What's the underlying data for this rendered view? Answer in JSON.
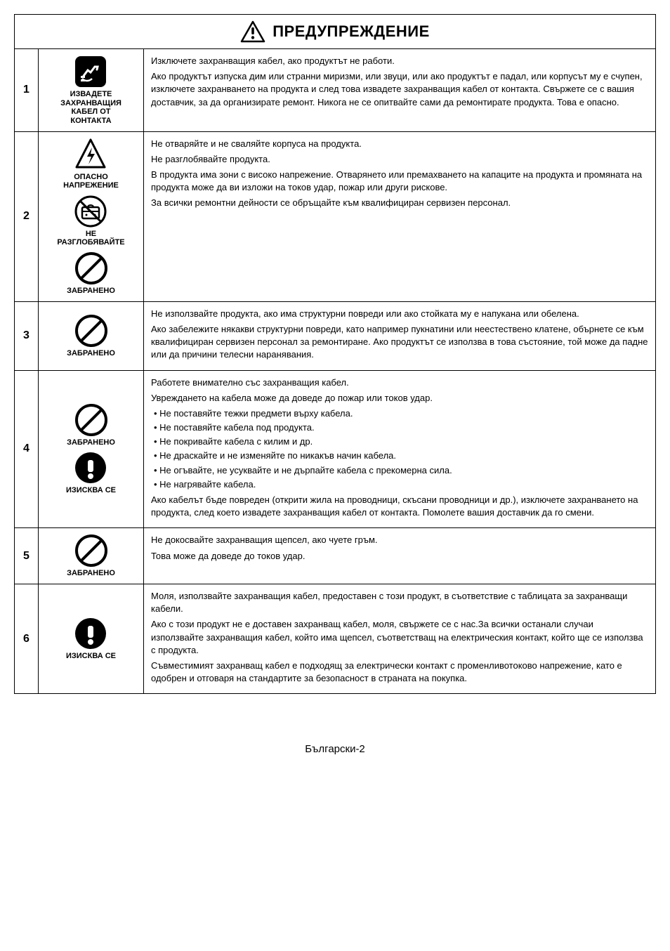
{
  "header": {
    "title": "ПРЕДУПРЕЖДЕНИЕ"
  },
  "rows": [
    {
      "num": "1",
      "icons": [
        {
          "type": "plug",
          "label": "ИЗВАДЕТЕ\nЗАХРАНВАЩИЯ\nКАБЕЛ ОТ\nКОНТАКТА"
        }
      ],
      "paras": [
        "Изключете захранващия кабел, ако продуктът не работи.",
        "Ако продуктът изпуска дим или странни миризми, или звуци, или ако продуктът е падал, или корпусът му е счупен, изключете захранването на продукта и след това извадете захранващия кабел от контакта. Свържете се с вашия доставчик, за да организирате ремонт. Никога не се опитвайте сами да ремонтирате продукта. Това е опасно."
      ]
    },
    {
      "num": "2",
      "icons": [
        {
          "type": "voltage",
          "label": "ОПАСНО\nНАПРЕЖЕНИЕ"
        },
        {
          "type": "disassemble",
          "label": "НЕ\nРАЗГЛОБЯВАЙТЕ"
        },
        {
          "type": "prohibit",
          "label": "ЗАБРАНЕНО"
        }
      ],
      "paras": [
        "Не отваряйте и не сваляйте корпуса на продукта.",
        "Не разглобявайте продукта.",
        "В продукта има зони с високо напрежение. Отварянето или премахването на капаците на продукта и промяната на продукта може да ви изложи на токов удар, пожар или други рискове.",
        "За всички ремонтни дейности се обръщайте към квалифициран сервизен персонал."
      ]
    },
    {
      "num": "3",
      "icons": [
        {
          "type": "prohibit",
          "label": "ЗАБРАНЕНО"
        }
      ],
      "paras": [
        "Не използвайте продукта, ако има структурни повреди или ако стойката му е напукана или обелена.",
        "Ако забележите някакви структурни повреди, като например пукнатини или неестествено клатене, обърнете се към квалифициран сервизен персонал за ремонтиране. Ако продуктът се използва в това състояние, той може да падне или да причини телесни наранявания."
      ]
    },
    {
      "num": "4",
      "icons": [
        {
          "type": "prohibit",
          "label": "ЗАБРАНЕНО"
        },
        {
          "type": "required",
          "label": "ИЗИСКВА СЕ"
        }
      ],
      "paras_pre": [
        "Работете внимателно със захранващия кабел.",
        "Увреждането на кабела може да доведе до пожар или токов удар."
      ],
      "items": [
        "Не поставяйте тежки предмети върху кабела.",
        "Не поставяйте кабела под продукта.",
        "Не покривайте кабела с килим и др.",
        "Не драскайте и не изменяйте по никакъв начин кабела.",
        "Не огъвайте, не усуквайте и не дърпайте кабела с прекомерна сила.",
        "Не нагрявайте кабела."
      ],
      "paras_post": [
        "Ако кабелът бъде повреден (открити жила на проводници, скъсани проводници и др.), изключете захранването на продукта, след което извадете захранващия кабел от контакта. Помолете вашия доставчик да го смени."
      ]
    },
    {
      "num": "5",
      "icons": [
        {
          "type": "prohibit",
          "label": "ЗАБРАНЕНО"
        }
      ],
      "paras": [
        "Не докосвайте захранващия щепсел, ако чуете гръм.",
        "Това може да доведе до токов удар."
      ]
    },
    {
      "num": "6",
      "icons": [
        {
          "type": "required",
          "label": "ИЗИСКВА СЕ"
        }
      ],
      "paras": [
        "Моля, използвайте захранващия кабел, предоставен с този продукт, в съответствие с таблицата за захранващи кабели.",
        "Ако с този продукт не е доставен захранващ кабел, моля, свържете се с нас.За всички останали случаи използвайте захранващия кабел, който има щепсел, съответстващ на електрическия контакт, който ще се използва с продукта.",
        "Съвместимият захранващ кабел е подходящ за електрически контакт с променливотоково напрежение, като е одобрен и отговаря на стандартите за безопасност в страната на покупка."
      ]
    }
  ],
  "footer": "Български-2"
}
